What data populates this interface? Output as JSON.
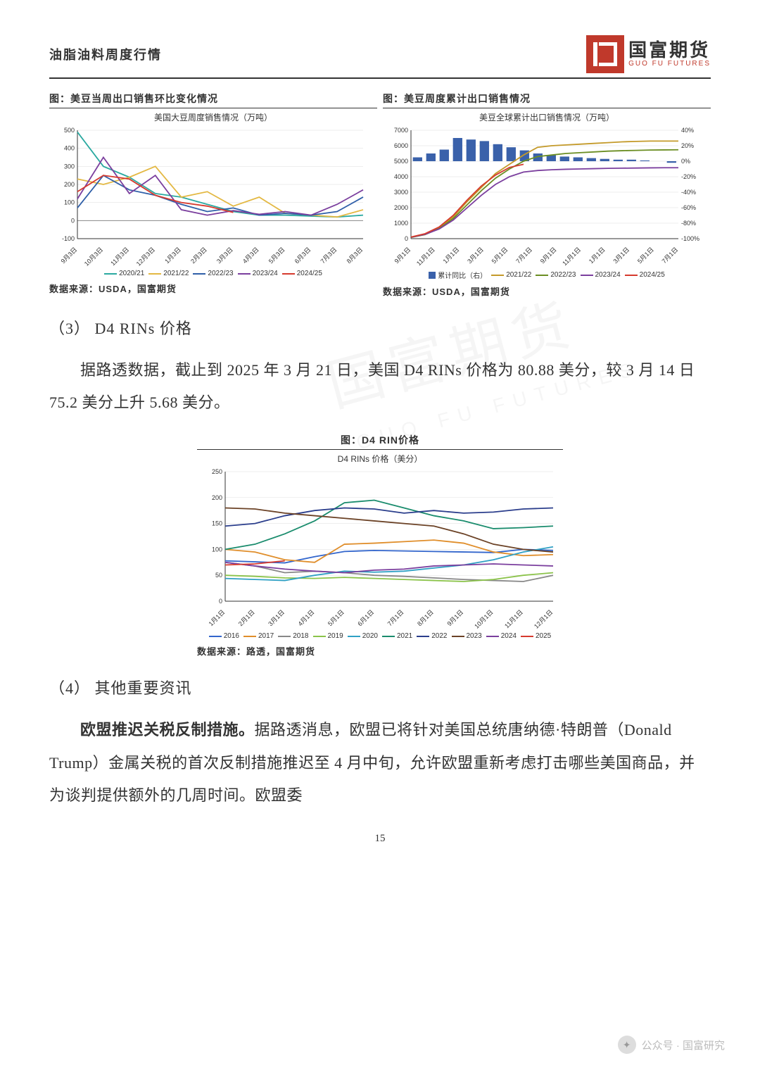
{
  "header": {
    "title": "油脂油料周度行情",
    "logo_cn": "国富期货",
    "logo_en": "GUO FU FUTURES"
  },
  "chart1": {
    "title": "图：美豆当周出口销售环比变化情况",
    "subtitle": "美国大豆周度销售情况（万吨）",
    "source": "数据来源：USDA，国富期货",
    "ylim": [
      -100,
      500
    ],
    "yticks": [
      -100,
      0,
      100,
      200,
      300,
      400,
      500
    ],
    "xlabels": [
      "9月3日",
      "10月3日",
      "11月3日",
      "12月3日",
      "1月3日",
      "2月3日",
      "3月3日",
      "4月3日",
      "5月3日",
      "6月3日",
      "7月3日",
      "8月3日"
    ],
    "series": [
      {
        "label": "2020/21",
        "color": "#2aa9a0",
        "data": [
          490,
          300,
          240,
          150,
          130,
          90,
          50,
          30,
          30,
          25,
          20,
          30
        ]
      },
      {
        "label": "2021/22",
        "color": "#e3b842",
        "data": [
          230,
          200,
          240,
          300,
          130,
          160,
          80,
          130,
          40,
          30,
          20,
          60
        ]
      },
      {
        "label": "2022/23",
        "color": "#2f5fa8",
        "data": [
          70,
          250,
          170,
          140,
          90,
          50,
          70,
          30,
          40,
          30,
          50,
          130
        ]
      },
      {
        "label": "2023/24",
        "color": "#7b3f9e",
        "data": [
          120,
          350,
          150,
          250,
          60,
          30,
          55,
          35,
          50,
          30,
          90,
          170
        ]
      },
      {
        "label": "2024/25",
        "color": "#d63a2e",
        "data": [
          160,
          250,
          230,
          140,
          100,
          80,
          45,
          null,
          null,
          null,
          null,
          null
        ]
      }
    ]
  },
  "chart2": {
    "title": "图：美豆周度累计出口销售情况",
    "subtitle": "美豆全球累计出口销售情况（万吨）",
    "source": "数据来源：USDA，国富期货",
    "y1lim": [
      0,
      7000
    ],
    "y1ticks": [
      0,
      1000,
      2000,
      3000,
      4000,
      5000,
      6000,
      7000
    ],
    "y2lim": [
      -100,
      40
    ],
    "y2ticks": [
      -100,
      -80,
      -60,
      -40,
      -20,
      0,
      20,
      40
    ],
    "xlabels": [
      "9月1日",
      "11月1日",
      "1月1日",
      "3月1日",
      "5月1日",
      "7月1日",
      "9月1日",
      "11月1日",
      "1月1日",
      "3月1日",
      "5月1日",
      "7月1日"
    ],
    "bars": {
      "label": "累计同比（右）",
      "color": "#3a61aa",
      "data": [
        5,
        10,
        15,
        30,
        28,
        26,
        22,
        18,
        14,
        10,
        8,
        6,
        5,
        4,
        3,
        2,
        2,
        1,
        0,
        -2
      ]
    },
    "series": [
      {
        "label": "2021/22",
        "color": "#c49a2a",
        "data": [
          100,
          300,
          700,
          1400,
          2400,
          3300,
          4200,
          4800,
          5400,
          5900,
          6000,
          6050,
          6100,
          6150,
          6200,
          6250,
          6280,
          6300,
          6300,
          6300
        ]
      },
      {
        "label": "2022/23",
        "color": "#6b8e23",
        "data": [
          80,
          260,
          650,
          1300,
          2200,
          3100,
          3900,
          4500,
          5000,
          5300,
          5400,
          5500,
          5550,
          5600,
          5650,
          5680,
          5700,
          5720,
          5730,
          5740
        ]
      },
      {
        "label": "2023/24",
        "color": "#7b3f9e",
        "data": [
          90,
          280,
          620,
          1200,
          2000,
          2800,
          3500,
          4000,
          4300,
          4400,
          4450,
          4480,
          4500,
          4520,
          4540,
          4550,
          4560,
          4570,
          4580,
          4580
        ]
      },
      {
        "label": "2024/25",
        "color": "#d63a2e",
        "data": [
          100,
          320,
          750,
          1500,
          2500,
          3400,
          4100,
          4600,
          4800,
          null,
          null,
          null,
          null,
          null,
          null,
          null,
          null,
          null,
          null,
          null
        ]
      }
    ]
  },
  "section3": {
    "heading": "（3） D4 RINs 价格",
    "para": "据路透数据，截止到 2025 年 3 月 21 日，美国 D4 RINs 价格为 80.88 美分，较 3 月 14 日 75.2 美分上升 5.68 美分。"
  },
  "chart3": {
    "title": "图：D4 RIN价格",
    "subtitle": "D4 RINs 价格（美分）",
    "source": "数据来源：路透，国富期货",
    "ylim": [
      0,
      250
    ],
    "yticks": [
      0,
      50,
      100,
      150,
      200,
      250
    ],
    "xlabels": [
      "1月1日",
      "2月1日",
      "3月1日",
      "4月1日",
      "5月1日",
      "6月1日",
      "7月1日",
      "8月1日",
      "9月1日",
      "10月1日",
      "11月1日",
      "12月1日"
    ],
    "series": [
      {
        "label": "2016",
        "color": "#3366cc",
        "data": [
          78,
          76,
          74,
          86,
          96,
          98,
          97,
          96,
          95,
          94,
          100,
          98
        ]
      },
      {
        "label": "2017",
        "color": "#e08e2b",
        "data": [
          100,
          95,
          80,
          75,
          110,
          112,
          115,
          118,
          112,
          95,
          88,
          90
        ]
      },
      {
        "label": "2018",
        "color": "#888",
        "data": [
          75,
          68,
          55,
          58,
          55,
          50,
          48,
          45,
          42,
          40,
          38,
          50
        ]
      },
      {
        "label": "2019",
        "color": "#8bc34a",
        "data": [
          50,
          48,
          45,
          44,
          46,
          44,
          42,
          40,
          38,
          42,
          50,
          55
        ]
      },
      {
        "label": "2020",
        "color": "#2fa0c4",
        "data": [
          44,
          42,
          40,
          50,
          58,
          56,
          58,
          64,
          70,
          80,
          95,
          105
        ]
      },
      {
        "label": "2021",
        "color": "#1a8c6d",
        "data": [
          100,
          110,
          130,
          155,
          190,
          195,
          180,
          165,
          155,
          140,
          142,
          145
        ]
      },
      {
        "label": "2022",
        "color": "#2b3e8c",
        "data": [
          145,
          150,
          165,
          175,
          180,
          178,
          170,
          175,
          170,
          172,
          178,
          180
        ]
      },
      {
        "label": "2023",
        "color": "#6b4226",
        "data": [
          180,
          178,
          170,
          165,
          160,
          155,
          150,
          145,
          130,
          110,
          100,
          95
        ]
      },
      {
        "label": "2024",
        "color": "#7b3f9e",
        "data": [
          75,
          68,
          62,
          58,
          55,
          60,
          62,
          68,
          70,
          72,
          70,
          68
        ]
      },
      {
        "label": "2025",
        "color": "#d63a2e",
        "data": [
          70,
          72,
          78,
          null,
          null,
          null,
          null,
          null,
          null,
          null,
          null,
          null
        ]
      }
    ]
  },
  "section4": {
    "heading": "（4） 其他重要资讯",
    "bold": "欧盟推迟关税反制措施。",
    "para": "据路透消息，欧盟已将针对美国总统唐纳德·特朗普（Donald Trump）金属关税的首次反制措施推迟至 4 月中旬，允许欧盟重新考虑打击哪些美国商品，并为谈判提供额外的几周时间。欧盟委"
  },
  "page_num": "15",
  "footer": {
    "label": "公众号 · 国富研究"
  }
}
